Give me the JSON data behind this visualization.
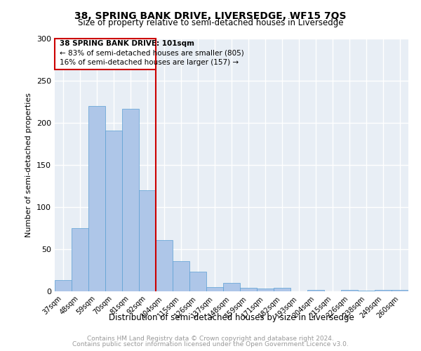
{
  "title": "38, SPRING BANK DRIVE, LIVERSEDGE, WF15 7QS",
  "subtitle": "Size of property relative to semi-detached houses in Liversedge",
  "xlabel": "Distribution of semi-detached houses by size in Liversedge",
  "ylabel": "Number of semi-detached properties",
  "categories": [
    "37sqm",
    "48sqm",
    "59sqm",
    "70sqm",
    "81sqm",
    "92sqm",
    "104sqm",
    "115sqm",
    "126sqm",
    "137sqm",
    "148sqm",
    "159sqm",
    "171sqm",
    "182sqm",
    "193sqm",
    "204sqm",
    "215sqm",
    "226sqm",
    "238sqm",
    "249sqm",
    "260sqm"
  ],
  "values": [
    13,
    75,
    220,
    191,
    217,
    120,
    61,
    36,
    23,
    5,
    10,
    4,
    3,
    4,
    0,
    2,
    0,
    2,
    1,
    2,
    2
  ],
  "bar_color": "#aec6e8",
  "bar_edge_color": "#5a9fd4",
  "vline_color": "#cc0000",
  "annotation_title": "38 SPRING BANK DRIVE: 101sqm",
  "annotation_line1": "← 83% of semi-detached houses are smaller (805)",
  "annotation_line2": "16% of semi-detached houses are larger (157) →",
  "annotation_box_color": "#cc0000",
  "ylim": [
    0,
    300
  ],
  "yticks": [
    0,
    50,
    100,
    150,
    200,
    250,
    300
  ],
  "footer1": "Contains HM Land Registry data © Crown copyright and database right 2024.",
  "footer2": "Contains public sector information licensed under the Open Government Licence v3.0.",
  "background_color": "#e8eef5",
  "grid_color": "#ffffff"
}
